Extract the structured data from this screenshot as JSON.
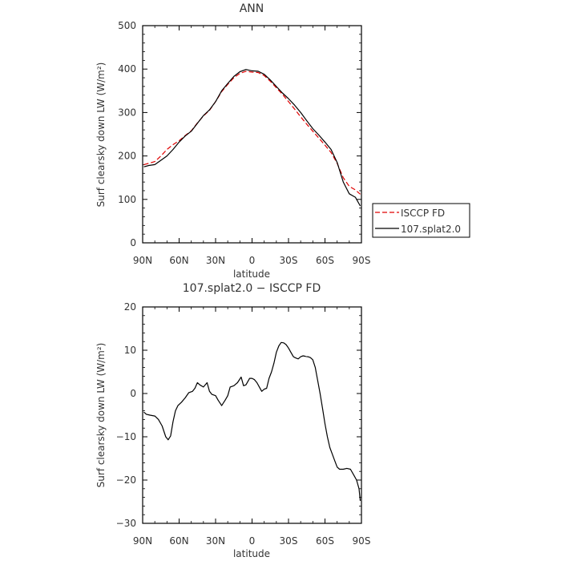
{
  "chart_data": [
    {
      "type": "line",
      "title": "ANN",
      "xlabel": "latitude",
      "ylabel": "Surf clearsky down LW (W/m²)",
      "xlim": [
        90,
        -90
      ],
      "ylim": [
        0,
        500
      ],
      "xticks": [
        90,
        60,
        30,
        0,
        -30,
        -60,
        -90
      ],
      "xticklabels": [
        "90N",
        "60N",
        "30N",
        "0",
        "30S",
        "60S",
        "90S"
      ],
      "yticks": [
        0,
        100,
        200,
        300,
        400,
        500
      ],
      "yticklabels": [
        "0",
        "100",
        "200",
        "300",
        "400",
        "500"
      ],
      "legend": {
        "placement": "outside-right"
      },
      "series": [
        {
          "name": "ISCCP FD",
          "color": "#e00000",
          "dash": true,
          "x": [
            89,
            85,
            80,
            75,
            70,
            65,
            60,
            55,
            50,
            45,
            40,
            35,
            30,
            25,
            20,
            15,
            10,
            5,
            0,
            -5,
            -10,
            -15,
            -20,
            -25,
            -30,
            -35,
            -40,
            -45,
            -50,
            -55,
            -60,
            -65,
            -70,
            -75,
            -80,
            -85,
            -89
          ],
          "y": [
            180,
            183,
            187,
            200,
            215,
            226,
            235,
            247,
            258,
            276,
            292,
            305,
            325,
            348,
            365,
            380,
            390,
            395,
            393,
            392,
            385,
            372,
            357,
            342,
            325,
            308,
            290,
            273,
            257,
            241,
            225,
            208,
            183,
            150,
            130,
            122,
            112
          ]
        },
        {
          "name": "107.splat2.0",
          "color": "#000000",
          "dash": false,
          "x": [
            89,
            85,
            80,
            75,
            70,
            65,
            60,
            55,
            50,
            45,
            40,
            35,
            30,
            25,
            20,
            15,
            10,
            5,
            0,
            -5,
            -10,
            -15,
            -20,
            -25,
            -30,
            -35,
            -40,
            -45,
            -50,
            -55,
            -60,
            -65,
            -70,
            -75,
            -80,
            -85,
            -89
          ],
          "y": [
            175,
            178,
            180,
            190,
            200,
            215,
            232,
            246,
            257,
            275,
            293,
            306,
            325,
            350,
            367,
            383,
            394,
            399,
            396,
            395,
            388,
            375,
            360,
            345,
            332,
            317,
            300,
            281,
            263,
            248,
            232,
            215,
            185,
            140,
            113,
            105,
            85
          ]
        }
      ]
    },
    {
      "type": "line",
      "title": "107.splat2.0 − ISCCP FD",
      "xlabel": "latitude",
      "ylabel": "Surf clearsky down LW (W/m²)",
      "xlim": [
        90,
        -90
      ],
      "ylim": [
        -30,
        20
      ],
      "xticks": [
        90,
        60,
        30,
        0,
        -30,
        -60,
        -90
      ],
      "xticklabels": [
        "90N",
        "60N",
        "30N",
        "0",
        "30S",
        "60S",
        "90S"
      ],
      "yticks": [
        -30,
        -20,
        -10,
        0,
        10,
        20
      ],
      "yticklabels": [
        "−30",
        "−20",
        "−10",
        "0",
        "10",
        "20"
      ],
      "series": [
        {
          "color": "#000000",
          "x": [
            89,
            87,
            84,
            80,
            77,
            74,
            71,
            69,
            67,
            65,
            63,
            61,
            58,
            55,
            52,
            49,
            47,
            45,
            43,
            40,
            37,
            35,
            33,
            30,
            28,
            25,
            22,
            20,
            18,
            15,
            12,
            9,
            7,
            5,
            2,
            0,
            -2,
            -4,
            -6,
            -8,
            -10,
            -12,
            -14,
            -16,
            -18,
            -20,
            -22,
            -24,
            -26,
            -28,
            -30,
            -32,
            -34,
            -36,
            -38,
            -40,
            -42,
            -44,
            -46,
            -48,
            -50,
            -52,
            -54,
            -56,
            -58,
            -60,
            -62,
            -64,
            -66,
            -68,
            -70,
            -72,
            -75,
            -78,
            -81,
            -84,
            -86,
            -88,
            -89
          ],
          "y": [
            -4.3,
            -4.8,
            -5,
            -5.2,
            -6,
            -7.5,
            -10,
            -10.7,
            -9.8,
            -6.5,
            -4,
            -2.8,
            -2,
            -1,
            0.2,
            0.5,
            1.2,
            2.5,
            2,
            1.5,
            2.5,
            0.5,
            -0.2,
            -0.5,
            -1.5,
            -2.8,
            -1.5,
            -0.5,
            1.5,
            1.8,
            2.5,
            3.8,
            1.8,
            2,
            3.5,
            3.5,
            3.2,
            2.5,
            1.5,
            0.5,
            1,
            1.2,
            3.5,
            5,
            7,
            9.5,
            11,
            11.8,
            11.7,
            11.3,
            10.5,
            9.5,
            8.5,
            8.2,
            8,
            8.5,
            8.7,
            8.6,
            8.5,
            8.3,
            7.8,
            6,
            3,
            0,
            -3.5,
            -7,
            -10,
            -12.5,
            -14,
            -15.5,
            -17,
            -17.5,
            -17.5,
            -17.3,
            -17.5,
            -19,
            -20,
            -22,
            -24.8
          ]
        }
      ]
    }
  ]
}
